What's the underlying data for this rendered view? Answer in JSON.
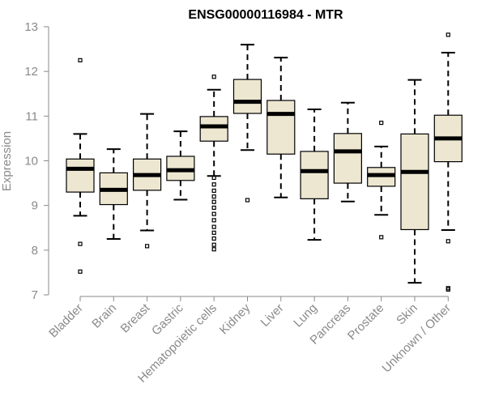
{
  "chart_data": {
    "type": "boxplot",
    "title": "ENSG00000116984 - MTR",
    "xlabel": "",
    "ylabel": "Expression",
    "ylim": [
      7,
      13
    ],
    "yticks": [
      7,
      8,
      9,
      10,
      11,
      12,
      13
    ],
    "box_fill": "#ede7d1",
    "categories": [
      "Bladder",
      "Brain",
      "Breast",
      "Gastric",
      "Hematopoietic cells",
      "Kidney",
      "Liver",
      "Lung",
      "Pancreas",
      "Prostate",
      "Skin",
      "Unknown / Other"
    ],
    "boxes": [
      {
        "min": 8.77,
        "q1": 9.3,
        "median": 9.82,
        "q3": 10.04,
        "max": 10.6,
        "outliers": [
          12.25,
          8.14,
          7.52
        ]
      },
      {
        "min": 8.25,
        "q1": 9.02,
        "median": 9.35,
        "q3": 9.73,
        "max": 10.26,
        "outliers": []
      },
      {
        "min": 8.44,
        "q1": 9.34,
        "median": 9.68,
        "q3": 10.04,
        "max": 11.05,
        "outliers": [
          8.09
        ]
      },
      {
        "min": 9.13,
        "q1": 9.56,
        "median": 9.79,
        "q3": 10.1,
        "max": 10.66,
        "outliers": []
      },
      {
        "min": 9.66,
        "q1": 10.44,
        "median": 10.77,
        "q3": 10.99,
        "max": 11.59,
        "outliers": [
          11.88,
          9.62,
          9.47,
          9.33,
          9.2,
          9.08,
          8.95,
          8.81,
          8.67,
          8.52,
          8.39,
          8.26,
          8.12,
          8.02
        ]
      },
      {
        "min": 10.24,
        "q1": 11.06,
        "median": 11.32,
        "q3": 11.82,
        "max": 12.6,
        "outliers": [
          9.12
        ]
      },
      {
        "min": 9.18,
        "q1": 10.15,
        "median": 11.05,
        "q3": 11.35,
        "max": 12.31,
        "outliers": []
      },
      {
        "min": 8.23,
        "q1": 9.15,
        "median": 9.77,
        "q3": 10.21,
        "max": 11.15,
        "outliers": []
      },
      {
        "min": 9.09,
        "q1": 9.5,
        "median": 10.21,
        "q3": 10.61,
        "max": 11.3,
        "outliers": []
      },
      {
        "min": 8.79,
        "q1": 9.43,
        "median": 9.68,
        "q3": 9.85,
        "max": 10.32,
        "outliers": [
          10.85,
          8.29
        ]
      },
      {
        "min": 7.27,
        "q1": 8.46,
        "median": 9.75,
        "q3": 10.6,
        "max": 11.81,
        "outliers": []
      },
      {
        "min": 8.45,
        "q1": 9.98,
        "median": 10.5,
        "q3": 11.02,
        "max": 12.42,
        "outliers": [
          12.82,
          8.2,
          7.15,
          7.12
        ]
      }
    ]
  }
}
